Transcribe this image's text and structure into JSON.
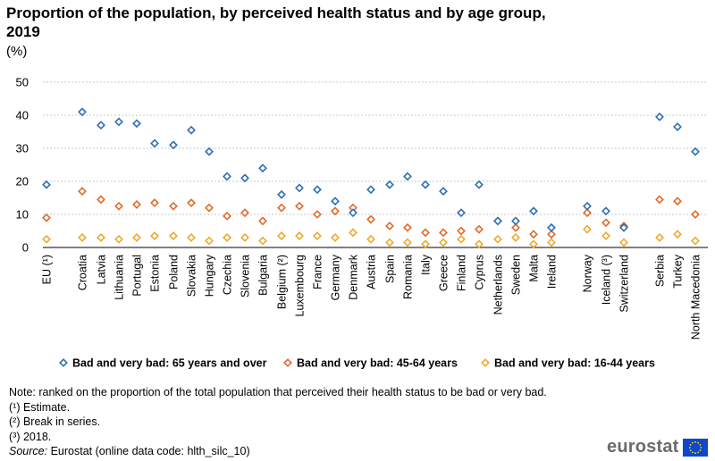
{
  "title": "Proportion of the population, by perceived health status and by age group, 2019",
  "unit": "(%)",
  "chart_data": {
    "type": "scatter",
    "categories": [
      "EU (¹)",
      "Croatia",
      "Latvia",
      "Lithuania",
      "Portugal",
      "Estonia",
      "Poland",
      "Slovakia",
      "Hungary",
      "Czechia",
      "Slovenia",
      "Bulgaria",
      "Belgium (²)",
      "Luxembourg",
      "France",
      "Germany",
      "Denmark",
      "Austria",
      "Spain",
      "Romania",
      "Italy",
      "Greece",
      "Finland",
      "Cyprus",
      "Netherlands",
      "Sweden",
      "Malta",
      "Ireland",
      "Norway",
      "Iceland (³)",
      "Switzerland",
      "Serbia",
      "Turkey",
      "North Macedonia"
    ],
    "ylim": [
      0,
      50
    ],
    "yticks": [
      "0",
      "10",
      "20",
      "30",
      "40",
      "50"
    ],
    "grid": true,
    "legend_position": "bottom",
    "series": [
      {
        "name": "Bad and very bad: 65 years and over",
        "color": "#2e6fb4",
        "values": [
          19,
          41,
          37,
          38,
          37.5,
          31.5,
          31,
          35.5,
          29,
          21.5,
          21,
          24,
          16,
          18,
          17.5,
          14,
          10.5,
          17.5,
          19,
          21.5,
          19,
          17,
          10.5,
          19,
          8,
          8,
          11,
          6,
          12.5,
          11,
          6,
          39.5,
          36.5,
          29
        ]
      },
      {
        "name": "Bad and very bad: 45-64 years",
        "color": "#e06a2a",
        "values": [
          9,
          17,
          14.5,
          12.5,
          13,
          13.5,
          12.5,
          13.5,
          12,
          9.5,
          10.5,
          8,
          12,
          12.5,
          10,
          11,
          12,
          8.5,
          6.5,
          6,
          4.5,
          4.5,
          5,
          5.5,
          8,
          6,
          4,
          4,
          10.5,
          7.5,
          6.5,
          14.5,
          14,
          10
        ]
      },
      {
        "name": "Bad and very bad: 16-44 years",
        "color": "#f0a92b",
        "values": [
          2.5,
          3,
          3,
          2.5,
          3,
          3.5,
          3.5,
          3,
          2,
          3,
          3,
          2,
          3.5,
          3.5,
          3.5,
          3,
          4.5,
          2.5,
          1.5,
          1.5,
          1,
          1.5,
          2.5,
          1,
          2.5,
          3,
          1,
          1.5,
          5.5,
          3.5,
          1.5,
          3,
          4,
          2
        ]
      }
    ]
  },
  "notes": {
    "note": "Note: ranked on the proportion of the total population that perceived their health status to be bad or very bad.",
    "f1": "(¹) Estimate.",
    "f2": "(²) Break in series.",
    "f3": "(³) 2018.",
    "source_label": "Source:",
    "source_text": " Eurostat (online data code: hlth_silc_10)"
  },
  "logo": {
    "text": "eurostat",
    "flag_color": "#0e47cb",
    "star_color": "#ffdd00"
  }
}
